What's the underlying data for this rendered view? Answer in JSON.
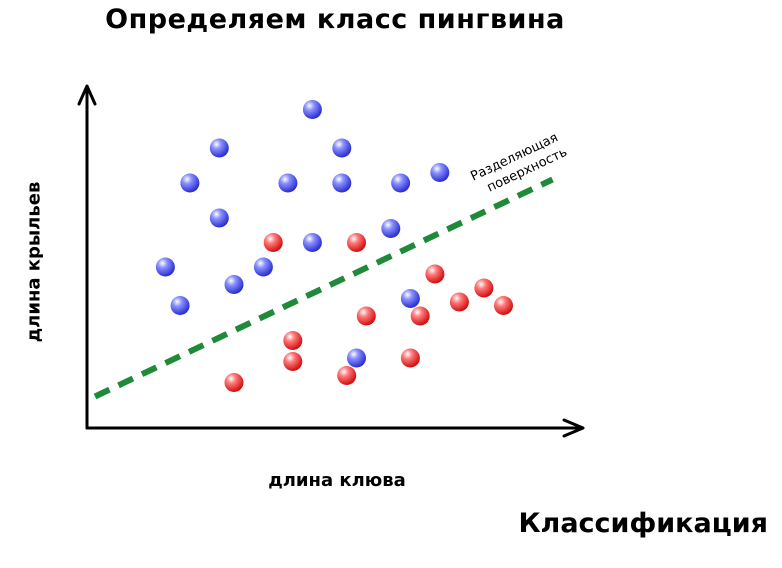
{
  "title": "Определяем класс пингвина",
  "footer": "Классификация",
  "xlabel": "длина клюва",
  "ylabel": "длина крыльев",
  "boundary_label": [
    "Разделяющая",
    "поверхность"
  ],
  "colors": {
    "class_a": "#3b43e6",
    "class_b": "#e02020",
    "boundary": "#1f8a3a",
    "axes": "#000000"
  },
  "chart_data": {
    "type": "scatter",
    "xlabel": "длина клюва",
    "ylabel": "длина крыльев",
    "xlim": [
      0,
      100
    ],
    "ylim": [
      0,
      100
    ],
    "series": [
      {
        "color": "#3b43e6",
        "points": [
          [
            46,
            91
          ],
          [
            27,
            80
          ],
          [
            52,
            80
          ],
          [
            21,
            70
          ],
          [
            41,
            70
          ],
          [
            52,
            70
          ],
          [
            64,
            70
          ],
          [
            72,
            73
          ],
          [
            27,
            60
          ],
          [
            62,
            57
          ],
          [
            46,
            53
          ],
          [
            16,
            46
          ],
          [
            36,
            46
          ],
          [
            30,
            41
          ],
          [
            19,
            35
          ],
          [
            66,
            37
          ],
          [
            55,
            20
          ]
        ]
      },
      {
        "color": "#e02020",
        "points": [
          [
            38,
            53
          ],
          [
            55,
            53
          ],
          [
            71,
            44
          ],
          [
            81,
            40
          ],
          [
            76,
            36
          ],
          [
            57,
            32
          ],
          [
            68,
            32
          ],
          [
            85,
            35
          ],
          [
            42,
            25
          ],
          [
            42,
            19
          ],
          [
            66,
            20
          ],
          [
            30,
            13
          ],
          [
            53,
            15
          ]
        ]
      }
    ],
    "boundary": {
      "x": [
        0,
        95
      ],
      "y": [
        9,
        71
      ]
    }
  }
}
